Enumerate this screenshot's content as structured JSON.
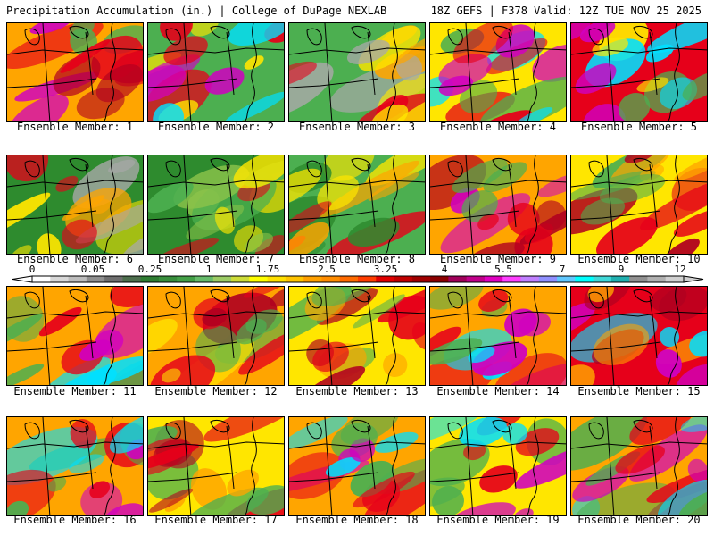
{
  "header": {
    "left": "Precipitation Accumulation (in.) | College of DuPage NEXLAB",
    "right": "18Z GEFS | F378 Valid: 12Z TUE NOV 25 2025"
  },
  "colorbar": {
    "labels": [
      "0",
      "0.05",
      "0.25",
      "1",
      "1.75",
      "2.5",
      "3.25",
      "4",
      "5.5",
      "7",
      "9",
      "12"
    ],
    "colors": [
      "#ffffff",
      "#d8d8d8",
      "#bdbdbd",
      "#8f8f8f",
      "#6e6e6e",
      "#4d6e4d",
      "#2e7d32",
      "#388e3c",
      "#43a047",
      "#66bb6a",
      "#9ccc65",
      "#cddc39",
      "#ffff00",
      "#ffe000",
      "#ffc400",
      "#ffa000",
      "#ff8c00",
      "#ff6a00",
      "#ff3d00",
      "#e00000",
      "#c00000",
      "#a00000",
      "#8b0000",
      "#a0005a",
      "#c0008a",
      "#e000c0",
      "#ff40ff",
      "#c080ff",
      "#9090ff",
      "#60c8ff",
      "#00ffff",
      "#40d8d8",
      "#20b0b0",
      "#909090",
      "#b0b0b0",
      "#d0d0d0"
    ]
  },
  "members": [
    {
      "label": "Ensemble Member: 1"
    },
    {
      "label": "Ensemble Member: 2"
    },
    {
      "label": "Ensemble Member: 3"
    },
    {
      "label": "Ensemble Member: 4"
    },
    {
      "label": "Ensemble Member: 5"
    },
    {
      "label": "Ensemble Member: 6"
    },
    {
      "label": "Ensemble Member: 7"
    },
    {
      "label": "Ensemble Member: 8"
    },
    {
      "label": "Ensemble Member: 9"
    },
    {
      "label": "Ensemble Member: 10"
    },
    {
      "label": "Ensemble Member: 11"
    },
    {
      "label": "Ensemble Member: 12"
    },
    {
      "label": "Ensemble Member: 13"
    },
    {
      "label": "Ensemble Member: 14"
    },
    {
      "label": "Ensemble Member: 15"
    },
    {
      "label": "Ensemble Member: 16"
    },
    {
      "label": "Ensemble Member: 17"
    },
    {
      "label": "Ensemble Member: 18"
    },
    {
      "label": "Ensemble Member: 19"
    },
    {
      "label": "Ensemble Member: 20"
    }
  ],
  "palette": {
    "green_dark": "#2e8b2e",
    "green": "#4caf50",
    "green_light": "#8bc34a",
    "yellow": "#ffe600",
    "orange": "#ffa500",
    "red": "#e6001a",
    "dark_red": "#b00020",
    "magenta": "#d000c0",
    "cyan": "#00e0ff",
    "gray": "#a8a8a8"
  }
}
